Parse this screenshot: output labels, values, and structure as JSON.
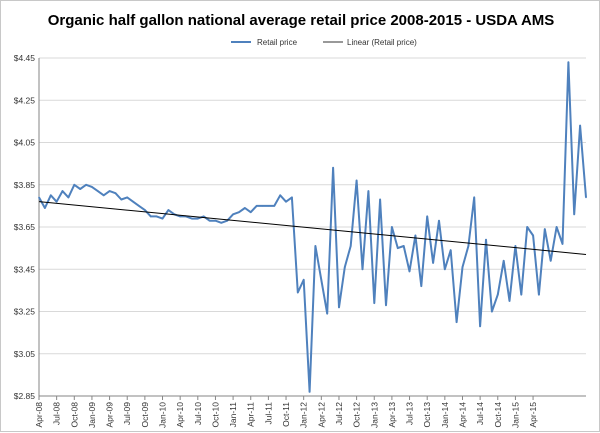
{
  "chart_data": {
    "type": "line",
    "title": "Organic half gallon national average retail price 2008-2015 - USDA AMS",
    "xlabel": "",
    "ylabel": "",
    "ylim": [
      2.85,
      4.45
    ],
    "yticks": [
      "$2.85",
      "$3.05",
      "$3.25",
      "$3.45",
      "$3.65",
      "$3.85",
      "$4.05",
      "$4.25",
      "$4.45"
    ],
    "ytick_values": [
      2.85,
      3.05,
      3.25,
      3.45,
      3.65,
      3.85,
      4.05,
      4.25,
      4.45
    ],
    "grid": true,
    "legend_position": "top-center",
    "x_tick_labels": [
      "Apr-08",
      "Jul-08",
      "Oct-08",
      "Jan-09",
      "Apr-09",
      "Jul-09",
      "Oct-09",
      "Jan-10",
      "Apr-10",
      "Jul-10",
      "Oct-10",
      "Jan-11",
      "Apr-11",
      "Jul-11",
      "Oct-11",
      "Jan-12",
      "Apr-12",
      "Jul-12",
      "Oct-12",
      "Jan-13",
      "Apr-13",
      "Jul-13",
      "Oct-13",
      "Jan-14",
      "Apr-14",
      "Jul-14",
      "Oct-14",
      "Jan-15",
      "Apr-15"
    ],
    "x_tick_step": 3,
    "series": [
      {
        "name": "Retail price",
        "color": "#4f81bd",
        "values": [
          3.79,
          3.74,
          3.8,
          3.77,
          3.82,
          3.79,
          3.85,
          3.83,
          3.85,
          3.84,
          3.82,
          3.8,
          3.82,
          3.81,
          3.78,
          3.79,
          3.77,
          3.75,
          3.73,
          3.7,
          3.7,
          3.69,
          3.73,
          3.71,
          3.7,
          3.7,
          3.69,
          3.69,
          3.7,
          3.68,
          3.68,
          3.67,
          3.68,
          3.71,
          3.72,
          3.74,
          3.72,
          3.75,
          3.75,
          3.75,
          3.75,
          3.8,
          3.77,
          3.79,
          3.34,
          3.4,
          2.87,
          3.56,
          3.4,
          3.24,
          3.93,
          3.27,
          3.46,
          3.56,
          3.87,
          3.45,
          3.82,
          3.29,
          3.78,
          3.28,
          3.65,
          3.55,
          3.56,
          3.44,
          3.61,
          3.37,
          3.7,
          3.48,
          3.68,
          3.45,
          3.54,
          3.2,
          3.46,
          3.56,
          3.79,
          3.18,
          3.59,
          3.25,
          3.33,
          3.49,
          3.3,
          3.56,
          3.33,
          3.65,
          3.61,
          3.33,
          3.64,
          3.49,
          3.65,
          3.57,
          4.43,
          3.71,
          4.13,
          3.79
        ]
      },
      {
        "name": "Linear (Retail price)",
        "color": "#000000",
        "start": 3.77,
        "end": 3.52
      }
    ]
  }
}
